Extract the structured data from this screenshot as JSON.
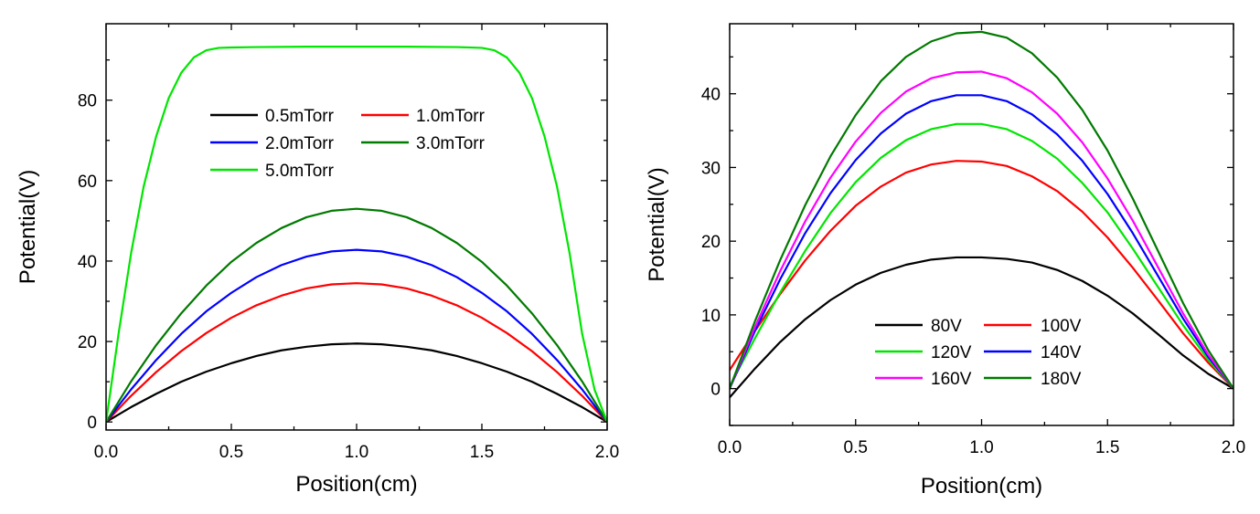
{
  "chart_data": [
    {
      "type": "line",
      "title": "",
      "xlabel": "Position(cm)",
      "ylabel": "Potential(V)",
      "xlim": [
        0,
        2
      ],
      "ylim": [
        -2,
        99
      ],
      "xticks": [
        0,
        0.5,
        1,
        1.5,
        2
      ],
      "xtick_labels": [
        "0.0",
        "0.5",
        "1.0",
        "1.5",
        "2.0"
      ],
      "yticks": [
        0,
        20,
        40,
        60,
        80
      ],
      "ytick_labels": [
        "0",
        "20",
        "40",
        "60",
        "80"
      ],
      "legend_position": "top-center",
      "series": [
        {
          "name": "0.5mTorr",
          "color": "#000000",
          "x": [
            0,
            0.1,
            0.2,
            0.3,
            0.4,
            0.5,
            0.6,
            0.7,
            0.8,
            0.9,
            1.0,
            1.1,
            1.2,
            1.3,
            1.4,
            1.5,
            1.6,
            1.7,
            1.8,
            1.9,
            2.0
          ],
          "y": [
            0,
            3.7,
            7.0,
            10.0,
            12.5,
            14.6,
            16.4,
            17.8,
            18.7,
            19.3,
            19.5,
            19.3,
            18.7,
            17.8,
            16.4,
            14.6,
            12.5,
            10.0,
            7.0,
            3.7,
            0
          ]
        },
        {
          "name": "1.0mTorr",
          "color": "#ff0000",
          "x": [
            0,
            0.1,
            0.2,
            0.3,
            0.4,
            0.5,
            0.6,
            0.7,
            0.8,
            0.9,
            1.0,
            1.1,
            1.2,
            1.3,
            1.4,
            1.5,
            1.6,
            1.7,
            1.8,
            1.9,
            2.0
          ],
          "y": [
            0,
            6.5,
            12.4,
            17.6,
            22.1,
            25.9,
            29.0,
            31.4,
            33.2,
            34.2,
            34.5,
            34.2,
            33.2,
            31.4,
            29.0,
            25.9,
            22.1,
            17.6,
            12.4,
            6.5,
            0
          ]
        },
        {
          "name": "2.0mTorr",
          "color": "#0000ff",
          "x": [
            0,
            0.1,
            0.2,
            0.3,
            0.4,
            0.5,
            0.6,
            0.7,
            0.8,
            0.9,
            1.0,
            1.1,
            1.2,
            1.3,
            1.4,
            1.5,
            1.6,
            1.7,
            1.8,
            1.9,
            2.0
          ],
          "y": [
            0,
            8.1,
            15.4,
            21.9,
            27.5,
            32.1,
            36.0,
            39.0,
            41.1,
            42.4,
            42.8,
            42.4,
            41.1,
            39.0,
            36.0,
            32.1,
            27.5,
            21.9,
            15.4,
            8.1,
            0
          ]
        },
        {
          "name": "3.0mTorr",
          "color": "#007a00",
          "x": [
            0,
            0.1,
            0.2,
            0.3,
            0.4,
            0.5,
            0.6,
            0.7,
            0.8,
            0.9,
            1.0,
            1.1,
            1.2,
            1.3,
            1.4,
            1.5,
            1.6,
            1.7,
            1.8,
            1.9,
            2.0
          ],
          "y": [
            0,
            10.1,
            19.1,
            27.0,
            33.9,
            39.8,
            44.5,
            48.2,
            50.9,
            52.5,
            53.0,
            52.5,
            50.9,
            48.2,
            44.5,
            39.8,
            33.9,
            27.0,
            19.1,
            10.1,
            0
          ]
        },
        {
          "name": "5.0mTorr",
          "color": "#00e600",
          "x": [
            0,
            0.05,
            0.1,
            0.15,
            0.2,
            0.25,
            0.3,
            0.35,
            0.4,
            0.45,
            0.5,
            0.6,
            0.8,
            1.0,
            1.2,
            1.4,
            1.5,
            1.55,
            1.6,
            1.65,
            1.7,
            1.75,
            1.8,
            1.85,
            1.9,
            1.95,
            2.0
          ],
          "y": [
            0,
            22.0,
            42.0,
            58.5,
            71.0,
            80.5,
            86.8,
            90.6,
            92.4,
            93.0,
            93.1,
            93.2,
            93.3,
            93.3,
            93.3,
            93.2,
            93.0,
            92.4,
            90.6,
            86.8,
            80.5,
            71.0,
            58.5,
            42.0,
            22.0,
            8.0,
            0
          ]
        }
      ]
    },
    {
      "type": "line",
      "title": "",
      "xlabel": "Position(cm)",
      "ylabel": "Potential(V)",
      "xlim": [
        0,
        2
      ],
      "ylim": [
        -5,
        49.5
      ],
      "xticks": [
        0,
        0.5,
        1,
        1.5,
        2
      ],
      "xtick_labels": [
        "0.0",
        "0.5",
        "1.0",
        "1.5",
        "2.0"
      ],
      "yticks": [
        0,
        10,
        20,
        30,
        40
      ],
      "ytick_labels": [
        "0",
        "10",
        "20",
        "30",
        "40"
      ],
      "legend_position": "bottom-center",
      "series": [
        {
          "name": "80V",
          "color": "#000000",
          "x": [
            0,
            0.1,
            0.2,
            0.3,
            0.4,
            0.5,
            0.6,
            0.7,
            0.8,
            0.9,
            1.0,
            1.1,
            1.2,
            1.3,
            1.4,
            1.5,
            1.6,
            1.7,
            1.8,
            1.9,
            2.0
          ],
          "y": [
            -1.2,
            2.7,
            6.3,
            9.4,
            12.0,
            14.1,
            15.7,
            16.8,
            17.5,
            17.8,
            17.8,
            17.6,
            17.1,
            16.1,
            14.6,
            12.6,
            10.2,
            7.4,
            4.5,
            2.0,
            0
          ]
        },
        {
          "name": "100V",
          "color": "#ff0000",
          "x": [
            0,
            0.1,
            0.2,
            0.3,
            0.4,
            0.5,
            0.6,
            0.7,
            0.8,
            0.9,
            1.0,
            1.1,
            1.2,
            1.3,
            1.4,
            1.5,
            1.6,
            1.7,
            1.8,
            1.9,
            2.0
          ],
          "y": [
            2.5,
            7.8,
            12.8,
            17.4,
            21.4,
            24.8,
            27.4,
            29.3,
            30.4,
            30.9,
            30.8,
            30.2,
            28.8,
            26.8,
            24.0,
            20.5,
            16.4,
            12.0,
            7.5,
            3.5,
            0
          ]
        },
        {
          "name": "120V",
          "color": "#00e600",
          "x": [
            0,
            0.1,
            0.2,
            0.3,
            0.4,
            0.5,
            0.6,
            0.7,
            0.8,
            0.9,
            1.0,
            1.1,
            1.2,
            1.3,
            1.4,
            1.5,
            1.6,
            1.7,
            1.8,
            1.9,
            2.0
          ],
          "y": [
            0.3,
            6.8,
            13.0,
            18.7,
            23.8,
            28.0,
            31.3,
            33.7,
            35.2,
            35.9,
            35.9,
            35.2,
            33.6,
            31.2,
            27.9,
            23.9,
            19.0,
            13.8,
            8.6,
            3.9,
            0
          ]
        },
        {
          "name": "140V",
          "color": "#0000ff",
          "x": [
            0,
            0.1,
            0.2,
            0.3,
            0.4,
            0.5,
            0.6,
            0.7,
            0.8,
            0.9,
            1.0,
            1.1,
            1.2,
            1.3,
            1.4,
            1.5,
            1.6,
            1.7,
            1.8,
            1.9,
            2.0
          ],
          "y": [
            0,
            7.8,
            14.8,
            21.1,
            26.5,
            31.0,
            34.6,
            37.3,
            39.0,
            39.8,
            39.8,
            39.0,
            37.2,
            34.5,
            30.9,
            26.4,
            21.1,
            15.3,
            9.5,
            4.3,
            0
          ]
        },
        {
          "name": "160V",
          "color": "#ff00ff",
          "x": [
            0,
            0.1,
            0.2,
            0.3,
            0.4,
            0.5,
            0.6,
            0.7,
            0.8,
            0.9,
            1.0,
            1.1,
            1.2,
            1.3,
            1.4,
            1.5,
            1.6,
            1.7,
            1.8,
            1.9,
            2.0
          ],
          "y": [
            0,
            8.3,
            15.9,
            22.7,
            28.6,
            33.5,
            37.4,
            40.3,
            42.1,
            42.9,
            43.0,
            42.1,
            40.2,
            37.3,
            33.4,
            28.5,
            22.8,
            16.5,
            10.2,
            4.6,
            0
          ]
        },
        {
          "name": "180V",
          "color": "#007a00",
          "x": [
            0,
            0.1,
            0.2,
            0.3,
            0.4,
            0.5,
            0.6,
            0.7,
            0.8,
            0.9,
            1.0,
            1.1,
            1.2,
            1.3,
            1.4,
            1.5,
            1.6,
            1.7,
            1.8,
            1.9,
            2.0
          ],
          "y": [
            0,
            9.1,
            17.4,
            24.9,
            31.5,
            37.1,
            41.7,
            45.0,
            47.1,
            48.2,
            48.4,
            47.6,
            45.5,
            42.2,
            37.8,
            32.3,
            25.8,
            18.7,
            11.6,
            5.2,
            0
          ]
        }
      ]
    }
  ]
}
